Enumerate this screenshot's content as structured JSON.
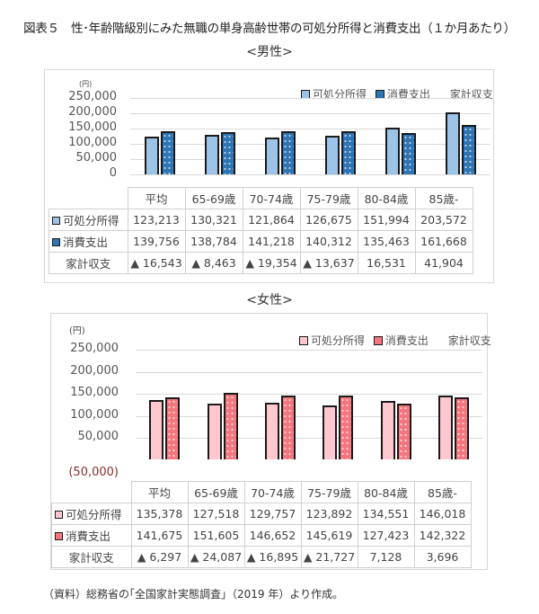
{
  "title": "図表５　性･年齢階級別にみた無職の単身高齢世帯の可処分所得と消費支出（１か月あたり）",
  "source_note": "（資料）総務省の｢全国家計実態調査｣（2019 年）より作成。",
  "male": {
    "subtitle": "<男性>",
    "unit": "(円)",
    "y_ticks": [
      "250,000",
      "200,000",
      "150,000",
      "100,000",
      "50,000",
      "0"
    ],
    "legend": {
      "income": "可処分所得",
      "spending": "消費支出",
      "balance": "家計収支"
    },
    "columns": [
      "平均",
      "65-69歳",
      "70-74歳",
      "75-79歳",
      "80-84歳",
      "85歳-"
    ],
    "rows": {
      "income": {
        "label": "可処分所得",
        "values": [
          "123,213",
          "130,321",
          "121,864",
          "126,675",
          "151,994",
          "203,572"
        ]
      },
      "spending": {
        "label": "消費支出",
        "values": [
          "139,756",
          "138,784",
          "141,218",
          "140,312",
          "135,463",
          "161,668"
        ]
      },
      "balance": {
        "label": "家計収支",
        "values": [
          "▲ 16,543",
          "▲ 8,463",
          "▲ 19,354",
          "▲ 13,637",
          "16,531",
          "41,904"
        ]
      }
    },
    "colors": {
      "income": "#9dc3e6",
      "spending": "#2e75b6"
    }
  },
  "female": {
    "subtitle": "<女性>",
    "unit": "(円)",
    "y_ticks": [
      "250,000",
      "200,000",
      "150,000",
      "100,000",
      "50,000"
    ],
    "y_neg_tick": "(50,000)",
    "legend": {
      "income": "可処分所得",
      "spending": "消費支出",
      "balance": "家計収支"
    },
    "columns": [
      "平均",
      "65-69歳",
      "70-74歳",
      "75-79歳",
      "80-84歳",
      "85歳-"
    ],
    "rows": {
      "income": {
        "label": "可処分所得",
        "values": [
          "135,378",
          "127,518",
          "129,757",
          "123,892",
          "134,551",
          "146,018"
        ]
      },
      "spending": {
        "label": "消費支出",
        "values": [
          "141,675",
          "151,605",
          "146,652",
          "145,619",
          "127,423",
          "142,322"
        ]
      },
      "balance": {
        "label": "家計収支",
        "values": [
          "▲ 6,297",
          "▲ 24,087",
          "▲ 16,895",
          "▲ 21,727",
          "7,128",
          "3,696"
        ]
      }
    },
    "colors": {
      "income": "#ffc7ce",
      "spending": "#f4777f"
    }
  },
  "chart_data": [
    {
      "type": "bar",
      "title": "<男性>",
      "ylabel": "(円)",
      "ylim": [
        0,
        250000
      ],
      "categories": [
        "平均",
        "65-69歳",
        "70-74歳",
        "75-79歳",
        "80-84歳",
        "85歳-"
      ],
      "series": [
        {
          "name": "可処分所得",
          "values": [
            123213,
            130321,
            121864,
            126675,
            151994,
            203572
          ]
        },
        {
          "name": "消費支出",
          "values": [
            139756,
            138784,
            141218,
            140312,
            135463,
            161668
          ]
        },
        {
          "name": "家計収支",
          "values": [
            -16543,
            -8463,
            -19354,
            -13637,
            16531,
            41904
          ]
        }
      ],
      "legend_position": "top-right",
      "grid": true
    },
    {
      "type": "bar",
      "title": "<女性>",
      "ylabel": "(円)",
      "ylim": [
        -50000,
        250000
      ],
      "categories": [
        "平均",
        "65-69歳",
        "70-74歳",
        "75-79歳",
        "80-84歳",
        "85歳-"
      ],
      "series": [
        {
          "name": "可処分所得",
          "values": [
            135378,
            127518,
            129757,
            123892,
            134551,
            146018
          ]
        },
        {
          "name": "消費支出",
          "values": [
            141675,
            151605,
            146652,
            145619,
            127423,
            142322
          ]
        },
        {
          "name": "家計収支",
          "values": [
            -6297,
            -24087,
            -16895,
            -21727,
            7128,
            3696
          ]
        }
      ],
      "legend_position": "top-right",
      "grid": true
    }
  ]
}
